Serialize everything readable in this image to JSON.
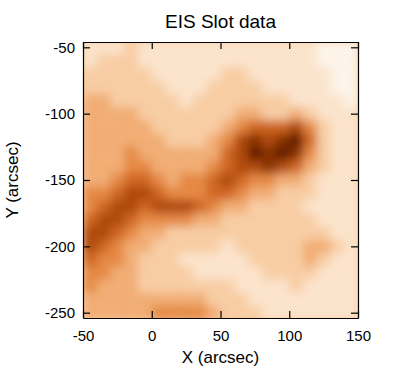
{
  "chart_data": {
    "type": "heatmap",
    "title": "EIS Slot data",
    "x_label": "X (arcsec)",
    "y_label": "Y (arcsec)",
    "x": [
      -45,
      -35,
      -25,
      -15,
      -5,
      5,
      15,
      25,
      35,
      45,
      55,
      65,
      75,
      85,
      95,
      105,
      115,
      125,
      135,
      145
    ],
    "y": [
      -50,
      -60,
      -70,
      -80,
      -90,
      -100,
      -110,
      -120,
      -130,
      -140,
      -150,
      -160,
      -170,
      -180,
      -190,
      -200,
      -210,
      -220,
      -230,
      -240,
      -250
    ],
    "z": [
      [
        2,
        2,
        2,
        3,
        2,
        2,
        2,
        2,
        2,
        2,
        2,
        2,
        2,
        2,
        2,
        2,
        2,
        1,
        1,
        1
      ],
      [
        2,
        3,
        3,
        3,
        2,
        2,
        2,
        2,
        2,
        2,
        2,
        2,
        2,
        2,
        2,
        2,
        2,
        1,
        1,
        1
      ],
      [
        3,
        3,
        3,
        3,
        3,
        2,
        2,
        2,
        2,
        2,
        3,
        3,
        2,
        2,
        2,
        2,
        2,
        2,
        1,
        1
      ],
      [
        3,
        3,
        3,
        3,
        3,
        3,
        2,
        2,
        2,
        3,
        3,
        3,
        3,
        2,
        2,
        2,
        2,
        2,
        1,
        1
      ],
      [
        4,
        4,
        3,
        3,
        3,
        3,
        3,
        2,
        3,
        3,
        3,
        3,
        3,
        3,
        3,
        2,
        2,
        2,
        2,
        1
      ],
      [
        4,
        4,
        4,
        4,
        3,
        3,
        3,
        3,
        3,
        3,
        3,
        4,
        4,
        3,
        3,
        4,
        3,
        2,
        2,
        2
      ],
      [
        4,
        4,
        4,
        4,
        4,
        3,
        3,
        3,
        3,
        3,
        4,
        5,
        6,
        6,
        6,
        7,
        5,
        3,
        2,
        2
      ],
      [
        4,
        4,
        4,
        4,
        4,
        4,
        3,
        3,
        3,
        4,
        5,
        7,
        8,
        7,
        8,
        9,
        6,
        3,
        2,
        2
      ],
      [
        4,
        4,
        4,
        5,
        4,
        4,
        4,
        4,
        4,
        4,
        6,
        7,
        9,
        8,
        9,
        8,
        5,
        3,
        2,
        2
      ],
      [
        4,
        4,
        4,
        5,
        5,
        4,
        4,
        4,
        4,
        5,
        6,
        7,
        7,
        8,
        7,
        6,
        4,
        3,
        2,
        2
      ],
      [
        4,
        4,
        5,
        6,
        6,
        5,
        4,
        5,
        5,
        6,
        7,
        6,
        5,
        5,
        4,
        4,
        3,
        2,
        2,
        2
      ],
      [
        5,
        5,
        6,
        7,
        7,
        6,
        5,
        5,
        5,
        6,
        6,
        5,
        4,
        4,
        3,
        3,
        3,
        2,
        2,
        2
      ],
      [
        5,
        6,
        7,
        7,
        6,
        7,
        7,
        7,
        6,
        5,
        4,
        4,
        3,
        3,
        3,
        3,
        2,
        2,
        2,
        2
      ],
      [
        6,
        7,
        7,
        6,
        5,
        5,
        5,
        5,
        4,
        4,
        3,
        3,
        3,
        3,
        3,
        3,
        3,
        2,
        2,
        2
      ],
      [
        7,
        7,
        6,
        5,
        4,
        4,
        3,
        3,
        3,
        3,
        3,
        3,
        3,
        3,
        3,
        3,
        3,
        3,
        2,
        2
      ],
      [
        7,
        6,
        5,
        4,
        4,
        3,
        3,
        3,
        3,
        3,
        2,
        3,
        3,
        3,
        3,
        3,
        4,
        4,
        3,
        2
      ],
      [
        6,
        5,
        5,
        4,
        3,
        3,
        3,
        2,
        2,
        2,
        2,
        2,
        3,
        3,
        3,
        3,
        4,
        3,
        2,
        2
      ],
      [
        5,
        5,
        4,
        4,
        3,
        3,
        3,
        3,
        2,
        2,
        2,
        2,
        2,
        3,
        3,
        3,
        3,
        2,
        2,
        2
      ],
      [
        5,
        4,
        4,
        4,
        3,
        3,
        3,
        3,
        3,
        3,
        3,
        2,
        2,
        2,
        2,
        3,
        2,
        2,
        2,
        2
      ],
      [
        4,
        4,
        4,
        4,
        4,
        4,
        4,
        4,
        4,
        3,
        3,
        3,
        2,
        2,
        2,
        2,
        2,
        2,
        2,
        2
      ],
      [
        4,
        4,
        4,
        4,
        4,
        5,
        5,
        5,
        5,
        4,
        3,
        3,
        3,
        2,
        2,
        2,
        2,
        2,
        2,
        2
      ]
    ],
    "xlim": [
      -50,
      150
    ],
    "ylim": [
      -254,
      -46
    ],
    "xticks": [
      -50,
      0,
      50,
      100,
      150
    ],
    "yticks": [
      -50,
      -100,
      -150,
      -200,
      -250
    ]
  }
}
